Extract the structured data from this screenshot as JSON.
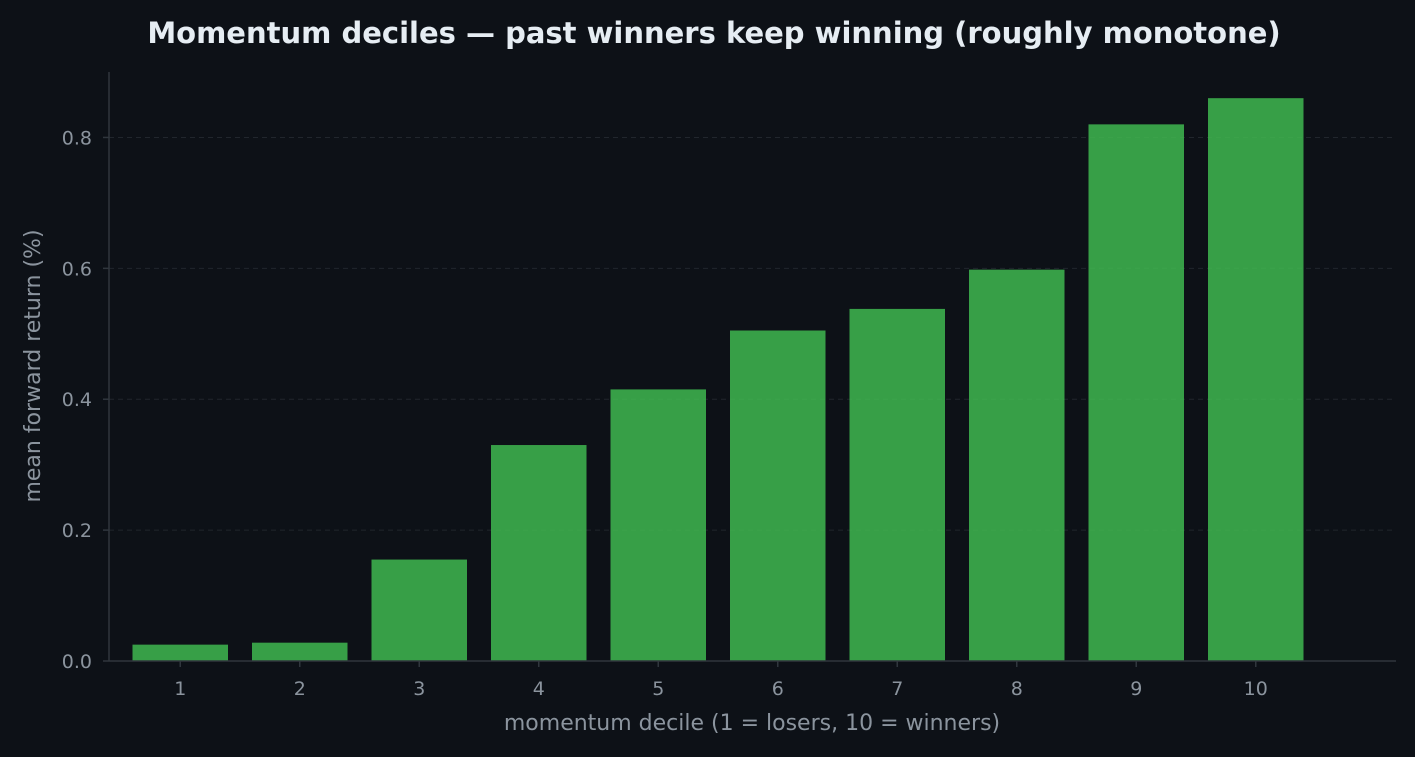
{
  "chart_data": {
    "type": "bar",
    "title": "Momentum deciles — past winners keep winning (roughly monotone)",
    "xlabel": "momentum decile (1 = losers, 10 = winners)",
    "ylabel": "mean forward return (%)",
    "categories": [
      "1",
      "2",
      "3",
      "4",
      "5",
      "6",
      "7",
      "8",
      "9",
      "10"
    ],
    "values": [
      0.025,
      0.028,
      0.155,
      0.33,
      0.415,
      0.505,
      0.538,
      0.598,
      0.82,
      0.86
    ],
    "ylim": [
      0,
      0.9
    ],
    "yticks": [
      0.0,
      0.2,
      0.4,
      0.6,
      0.8
    ],
    "ytick_labels": [
      "0.0",
      "0.2",
      "0.4",
      "0.6",
      "0.8"
    ],
    "grid": "horizontal-dashed",
    "legend": "none"
  },
  "colors": {
    "background": "#0d1117",
    "bar": "#3fb950",
    "grid": "#21262d",
    "axis": "#30363d",
    "text": "#8b949e",
    "title": "#e6edf3"
  }
}
